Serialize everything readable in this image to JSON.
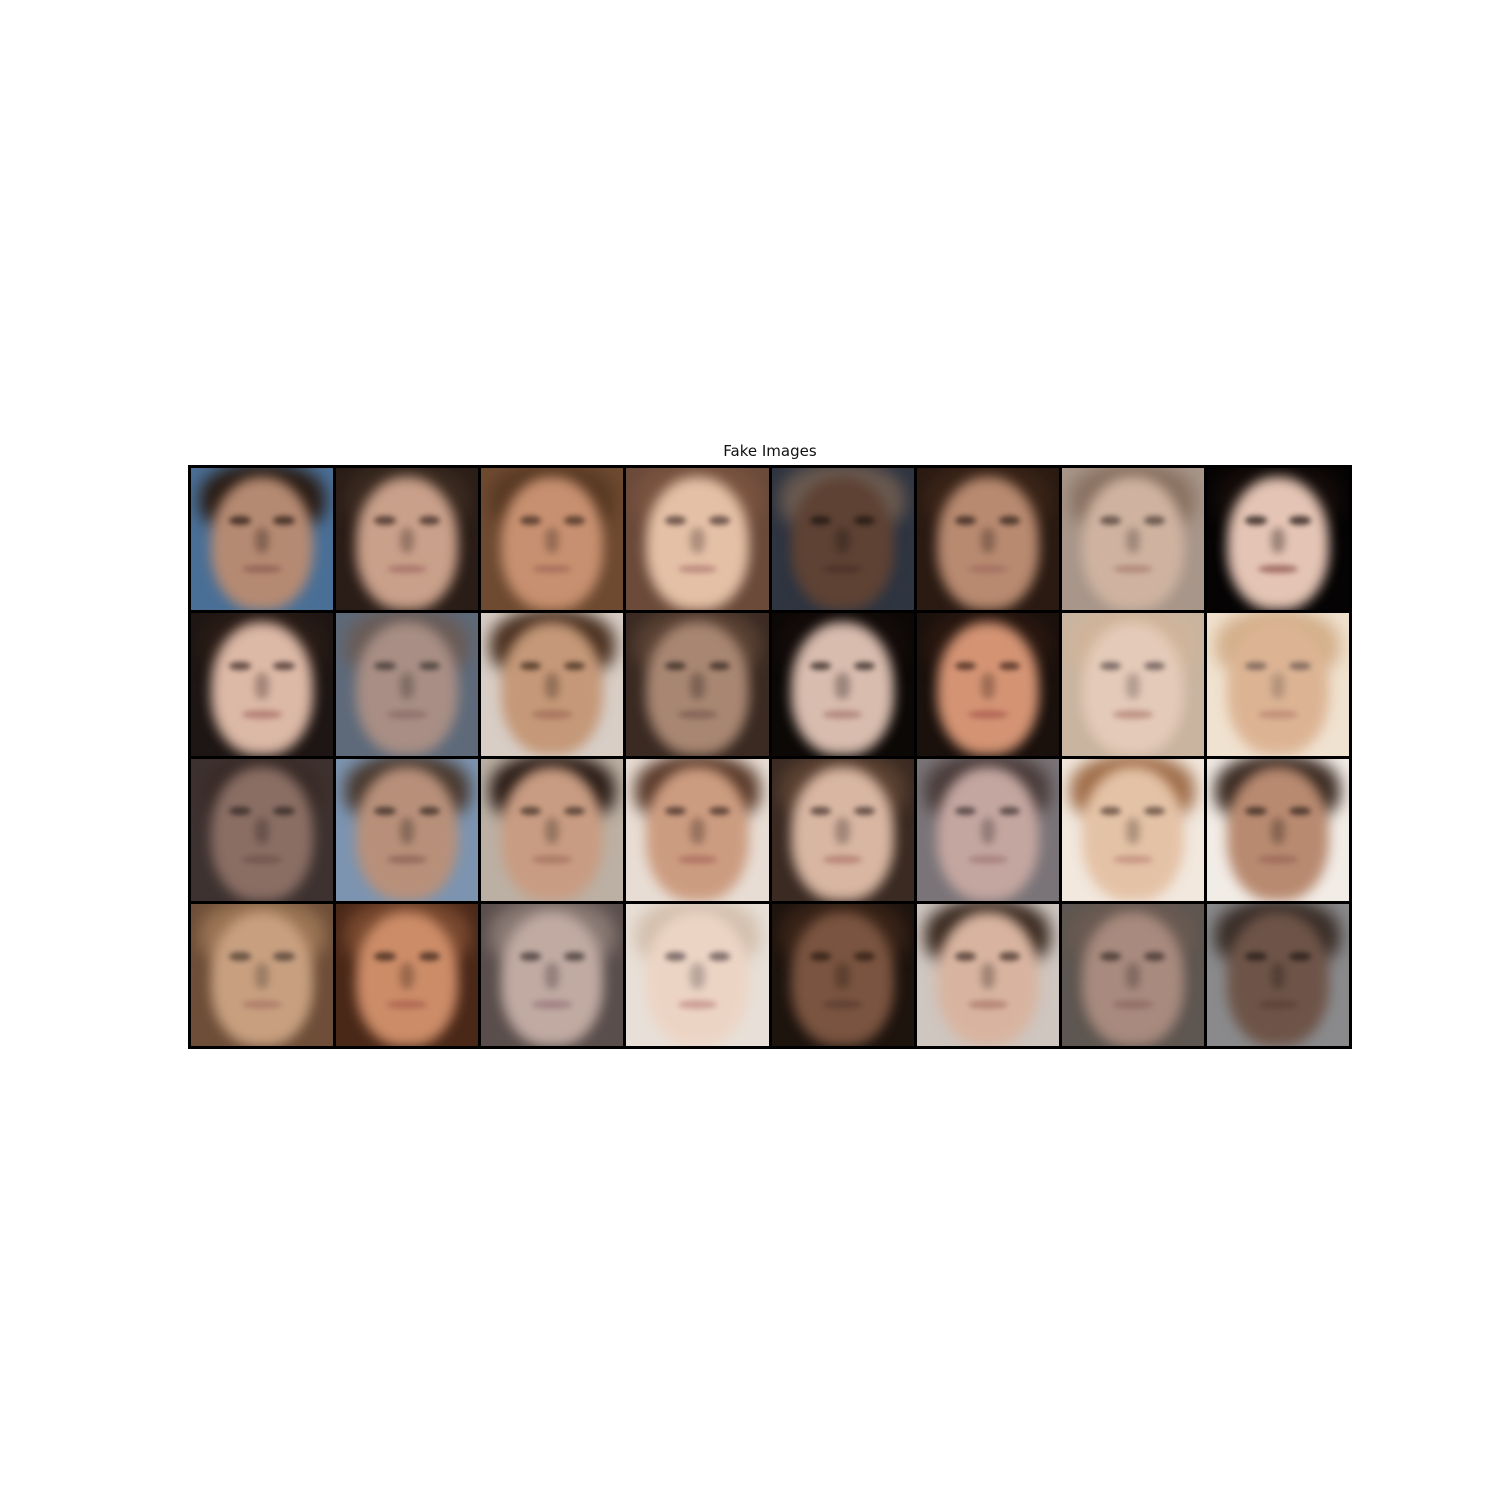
{
  "figure": {
    "title": "Fake Images",
    "rows": 4,
    "columns": 8,
    "tiles": [
      {
        "bg": "#4a6f96",
        "hair": "#2a1c14",
        "skin": "#b58a72",
        "eye": "#2a1a14",
        "mouth": "#8a5a50"
      },
      {
        "bg": "#2a1d17",
        "hair": "#3a2a20",
        "skin": "#c9a08a",
        "eye": "#3a2620",
        "mouth": "#a06a62"
      },
      {
        "bg": "#6e4a30",
        "hair": "#5a3a24",
        "skin": "#c79070",
        "eye": "#3e2a20",
        "mouth": "#a06858"
      },
      {
        "bg": "#6b4a3a",
        "hair": "#7a5440",
        "skin": "#e4c0a6",
        "eye": "#4a3430",
        "mouth": "#b07a70"
      },
      {
        "bg": "#2e3440",
        "hair": "#6a5a50",
        "skin": "#5e4234",
        "eye": "#1e1410",
        "mouth": "#4a2e26"
      },
      {
        "bg": "#2a1a12",
        "hair": "#3a2418",
        "skin": "#b88a70",
        "eye": "#2e1e18",
        "mouth": "#a06a60"
      },
      {
        "bg": "#a8968a",
        "hair": "#8a7262",
        "skin": "#cfb3a0",
        "eye": "#4a3a34",
        "mouth": "#a87a70"
      },
      {
        "bg": "#050303",
        "hair": "#150d0a",
        "skin": "#e4c4b4",
        "eye": "#1a100e",
        "mouth": "#8a4e48"
      },
      {
        "bg": "#1e1614",
        "hair": "#2a1c16",
        "skin": "#dcb8a6",
        "eye": "#3a2824",
        "mouth": "#a86e68"
      },
      {
        "bg": "#5e6a7a",
        "hair": "#6a5c58",
        "skin": "#a88e84",
        "eye": "#3a302e",
        "mouth": "#8a6a66"
      },
      {
        "bg": "#d8cec6",
        "hair": "#4a3020",
        "skin": "#c49878",
        "eye": "#3a2618",
        "mouth": "#a06a58"
      },
      {
        "bg": "#3a2a22",
        "hair": "#5a4234",
        "skin": "#a88672",
        "eye": "#2e221c",
        "mouth": "#7a5a50"
      },
      {
        "bg": "#0c0806",
        "hair": "#140c0a",
        "skin": "#d8bcae",
        "eye": "#2a1e1a",
        "mouth": "#a87870"
      },
      {
        "bg": "#1a100c",
        "hair": "#2a1810",
        "skin": "#d49474",
        "eye": "#3a2218",
        "mouth": "#a85a4e"
      },
      {
        "bg": "#c9b4a0",
        "hair": "#d0b49a",
        "skin": "#e4cab8",
        "eye": "#5a4a4a",
        "mouth": "#b08074"
      },
      {
        "bg": "#f0e2d0",
        "hair": "#d4b08c",
        "skin": "#dcb494",
        "eye": "#6a5650",
        "mouth": "#b88470"
      },
      {
        "bg": "#3e3230",
        "hair": "#3a2c28",
        "skin": "#8a6e64",
        "eye": "#2a201e",
        "mouth": "#6e524c"
      },
      {
        "bg": "#7c94b0",
        "hair": "#4a3a30",
        "skin": "#b8907a",
        "eye": "#2e221c",
        "mouth": "#8a5e54"
      },
      {
        "bg": "#bcb0a4",
        "hair": "#2a1c16",
        "skin": "#c89c82",
        "eye": "#3a2a22",
        "mouth": "#a4705e"
      },
      {
        "bg": "#e8ddd4",
        "hair": "#5a3a2a",
        "skin": "#cc9c80",
        "eye": "#3a2620",
        "mouth": "#a86a5c"
      },
      {
        "bg": "#3a2a22",
        "hair": "#5c4232",
        "skin": "#d8b6a2",
        "eye": "#3e2c28",
        "mouth": "#b0766c"
      },
      {
        "bg": "#7a7478",
        "hair": "#4a3c3a",
        "skin": "#c4a6a0",
        "eye": "#3a2e2e",
        "mouth": "#a07876"
      },
      {
        "bg": "#f2e8de",
        "hair": "#a06e4a",
        "skin": "#e4c2a6",
        "eye": "#4e3a30",
        "mouth": "#c08a7c"
      },
      {
        "bg": "#f2ece6",
        "hair": "#3a2a22",
        "skin": "#b88a70",
        "eye": "#2e201a",
        "mouth": "#9a6456"
      },
      {
        "bg": "#6e4e38",
        "hair": "#9a7454",
        "skin": "#c8a080",
        "eye": "#4a3a30",
        "mouth": "#a87464"
      },
      {
        "bg": "#4a2818",
        "hair": "#7a4a30",
        "skin": "#cc8c68",
        "eye": "#3a2418",
        "mouth": "#a8604e"
      },
      {
        "bg": "#5a4e4c",
        "hair": "#8a7a74",
        "skin": "#c0aaa2",
        "eye": "#3e3232",
        "mouth": "#98747a"
      },
      {
        "bg": "#e8e0d8",
        "hair": "#d4c0ae",
        "skin": "#ecd4c4",
        "eye": "#5a4c4e",
        "mouth": "#c08a84"
      },
      {
        "bg": "#1e140e",
        "hair": "#3a2418",
        "skin": "#7a5440",
        "eye": "#2a1a12",
        "mouth": "#5a3a30"
      },
      {
        "bg": "#cfc6c0",
        "hair": "#3a2a20",
        "skin": "#d8b4a0",
        "eye": "#3e2c26",
        "mouth": "#aa7468"
      },
      {
        "bg": "#5e5650",
        "hair": "#6a5a52",
        "skin": "#a88a7e",
        "eye": "#3a2e2a",
        "mouth": "#8a6660"
      },
      {
        "bg": "#8a8a8c",
        "hair": "#3a2e28",
        "skin": "#6e5448",
        "eye": "#241a16",
        "mouth": "#5a3e36"
      }
    ]
  }
}
